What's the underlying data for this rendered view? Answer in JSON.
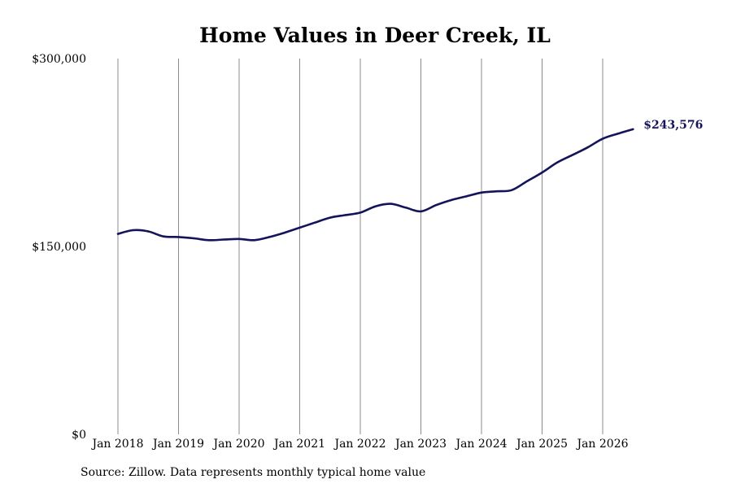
{
  "chart_data": {
    "type": "line",
    "title": "Home Values in Deer Creek, IL",
    "xlabel": "",
    "ylabel": "",
    "ylim": [
      0,
      300000
    ],
    "y_ticks": [
      {
        "value": 0,
        "label": "$0"
      },
      {
        "value": 150000,
        "label": "$150,000"
      },
      {
        "value": 300000,
        "label": "$300,000"
      }
    ],
    "x_ticks": [
      "Jan 2018",
      "Jan 2019",
      "Jan 2020",
      "Jan 2021",
      "Jan 2022",
      "Jan 2023",
      "Jan 2024",
      "Jan 2025",
      "Jan 2026"
    ],
    "grid": "vertical",
    "line_color": "#14145a",
    "end_label": "$243,576",
    "series": [
      {
        "name": "",
        "x": [
          "2018-01",
          "2018-04",
          "2018-07",
          "2018-10",
          "2019-01",
          "2019-04",
          "2019-07",
          "2019-10",
          "2020-01",
          "2020-04",
          "2020-07",
          "2020-10",
          "2021-01",
          "2021-04",
          "2021-07",
          "2021-10",
          "2022-01",
          "2022-04",
          "2022-07",
          "2022-10",
          "2023-01",
          "2023-04",
          "2023-07",
          "2023-10",
          "2024-01",
          "2024-04",
          "2024-07",
          "2024-10",
          "2025-01",
          "2025-04",
          "2025-07",
          "2025-10",
          "2026-01",
          "2026-04",
          "2026-07"
        ],
        "values": [
          160000,
          163000,
          162000,
          158000,
          157500,
          156500,
          155000,
          155500,
          156000,
          155000,
          157500,
          161000,
          165000,
          169000,
          173000,
          175000,
          177000,
          182000,
          184000,
          181000,
          178000,
          183000,
          187000,
          190000,
          193000,
          194000,
          195000,
          202000,
          209000,
          217000,
          223000,
          229000,
          236000,
          240000,
          243576
        ]
      }
    ]
  },
  "footer": {
    "source": "Source: Zillow. Data represents monthly typical home value"
  }
}
